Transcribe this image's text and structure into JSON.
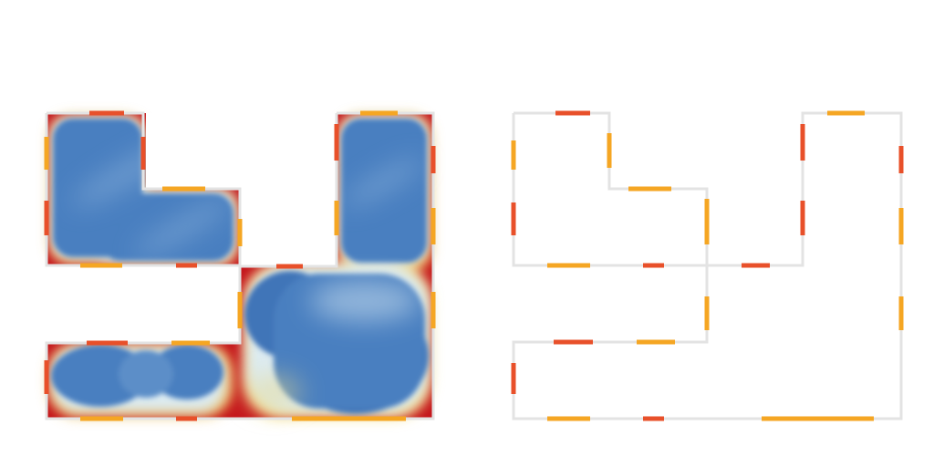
{
  "colors": {
    "background": "#ffffff",
    "wall": "#e3e3e3",
    "ap_orange": "#f5a623",
    "ap_red": "#e8502a",
    "heat_blue_dark": "#3a6fb5",
    "heat_blue_mid": "#6a9ccf",
    "heat_light": "#dcebf2",
    "heat_yellow": "#f7e08a",
    "heat_red": "#c4141b"
  },
  "panels": [
    {
      "id": "coverage-heatmap",
      "shows_heatmap": true
    },
    {
      "id": "ap-placement-plan",
      "shows_heatmap": false
    }
  ]
}
